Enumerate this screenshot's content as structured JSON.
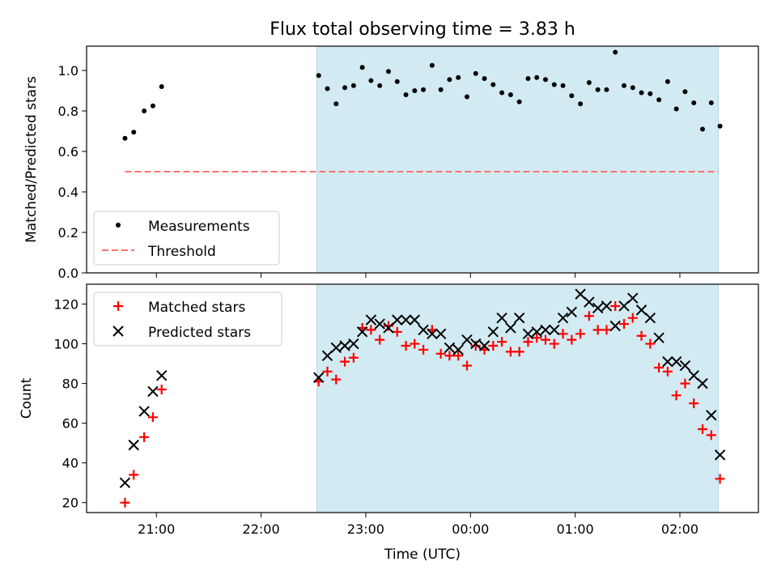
{
  "figure": {
    "title": "Flux total observing time = 3.83 h",
    "xlabel": "Time (UTC)"
  },
  "colors": {
    "shade": "#add8e6",
    "measurement": "#000000",
    "threshold": "#ff7070",
    "matched": "#ff0000",
    "predicted": "#000000"
  },
  "chart_data": [
    {
      "type": "scatter",
      "panel": "top",
      "ylabel": "Matched/Predicted stars",
      "ylim": [
        0,
        1.12
      ],
      "yticks": [
        0.0,
        0.2,
        0.4,
        0.6,
        0.8,
        1.0
      ],
      "ytick_labels": [
        "0.0",
        "0.2",
        "0.4",
        "0.6",
        "0.8",
        "1.0"
      ],
      "xlim": [
        "20:20",
        "02:45"
      ],
      "shaded_interval": [
        "22:32",
        "02:22"
      ],
      "legend_position": "lower-left",
      "series": [
        {
          "name": "Measurements",
          "marker": "dot",
          "x": [
            "20:42",
            "20:47",
            "20:53",
            "20:58",
            "21:03",
            "22:33",
            "22:38",
            "22:43",
            "22:48",
            "22:53",
            "22:58",
            "23:03",
            "23:08",
            "23:13",
            "23:18",
            "23:23",
            "23:28",
            "23:33",
            "23:38",
            "23:43",
            "23:48",
            "23:53",
            "23:58",
            "00:03",
            "00:08",
            "00:13",
            "00:18",
            "00:23",
            "00:28",
            "00:33",
            "00:38",
            "00:43",
            "00:48",
            "00:53",
            "00:58",
            "01:03",
            "01:08",
            "01:13",
            "01:18",
            "01:23",
            "01:28",
            "01:33",
            "01:38",
            "01:43",
            "01:48",
            "01:53",
            "01:58",
            "02:03",
            "02:08",
            "02:13",
            "02:18",
            "02:23"
          ],
          "y": [
            0.665,
            0.695,
            0.8,
            0.825,
            0.92,
            0.975,
            0.91,
            0.835,
            0.915,
            0.925,
            1.015,
            0.95,
            0.925,
            0.995,
            0.945,
            0.88,
            0.9,
            0.905,
            1.025,
            0.905,
            0.955,
            0.965,
            0.87,
            0.985,
            0.96,
            0.93,
            0.89,
            0.88,
            0.845,
            0.96,
            0.965,
            0.955,
            0.93,
            0.925,
            0.875,
            0.835,
            0.94,
            0.905,
            0.905,
            1.09,
            0.925,
            0.915,
            0.89,
            0.885,
            0.855,
            0.945,
            0.81,
            0.895,
            0.84,
            0.71,
            0.84,
            0.725
          ]
        },
        {
          "name": "Threshold",
          "style": "dashed-line",
          "x": [
            "20:42",
            "02:22"
          ],
          "y": [
            0.5,
            0.5
          ]
        }
      ]
    },
    {
      "type": "scatter",
      "panel": "bottom",
      "ylabel": "Count",
      "ylim": [
        15,
        130
      ],
      "yticks": [
        20,
        40,
        60,
        80,
        100,
        120
      ],
      "ytick_labels": [
        "20",
        "40",
        "60",
        "80",
        "100",
        "120"
      ],
      "xlim": [
        "20:20",
        "02:45"
      ],
      "xticks": [
        "21:00",
        "22:00",
        "23:00",
        "00:00",
        "01:00",
        "02:00"
      ],
      "xtick_labels": [
        "21:00",
        "22:00",
        "23:00",
        "00:00",
        "01:00",
        "02:00"
      ],
      "shaded_interval": [
        "22:32",
        "02:22"
      ],
      "legend_position": "upper-left",
      "series": [
        {
          "name": "Matched stars",
          "marker": "plus",
          "x": [
            "20:42",
            "20:47",
            "20:53",
            "20:58",
            "21:03",
            "22:33",
            "22:38",
            "22:43",
            "22:48",
            "22:53",
            "22:58",
            "23:03",
            "23:08",
            "23:13",
            "23:18",
            "23:23",
            "23:28",
            "23:33",
            "23:38",
            "23:43",
            "23:48",
            "23:53",
            "23:58",
            "00:03",
            "00:08",
            "00:13",
            "00:18",
            "00:23",
            "00:28",
            "00:33",
            "00:38",
            "00:43",
            "00:48",
            "00:53",
            "00:58",
            "01:03",
            "01:08",
            "01:13",
            "01:18",
            "01:23",
            "01:28",
            "01:33",
            "01:38",
            "01:43",
            "01:48",
            "01:53",
            "01:58",
            "02:03",
            "02:08",
            "02:13",
            "02:18",
            "02:23"
          ],
          "y": [
            20,
            34,
            53,
            63,
            77,
            81,
            86,
            82,
            91,
            93,
            108,
            107,
            102,
            109,
            106,
            99,
            100,
            97,
            107,
            95,
            94,
            94,
            89,
            99,
            97,
            99,
            101,
            96,
            96,
            101,
            103,
            102,
            100,
            105,
            102,
            105,
            114,
            107,
            107,
            119,
            110,
            113,
            104,
            100,
            88,
            86,
            74,
            80,
            70,
            57,
            54,
            32
          ]
        },
        {
          "name": "Predicted stars",
          "marker": "x",
          "x": [
            "20:42",
            "20:47",
            "20:53",
            "20:58",
            "21:03",
            "22:33",
            "22:38",
            "22:43",
            "22:48",
            "22:53",
            "22:58",
            "23:03",
            "23:08",
            "23:13",
            "23:18",
            "23:23",
            "23:28",
            "23:33",
            "23:38",
            "23:43",
            "23:48",
            "23:53",
            "23:58",
            "00:03",
            "00:08",
            "00:13",
            "00:18",
            "00:23",
            "00:28",
            "00:33",
            "00:38",
            "00:43",
            "00:48",
            "00:53",
            "00:58",
            "01:03",
            "01:08",
            "01:13",
            "01:18",
            "01:23",
            "01:28",
            "01:33",
            "01:38",
            "01:43",
            "01:48",
            "01:53",
            "01:58",
            "02:03",
            "02:08",
            "02:13",
            "02:18",
            "02:23"
          ],
          "y": [
            30,
            49,
            66,
            76,
            84,
            83,
            94,
            98,
            99,
            100,
            106,
            112,
            110,
            108,
            112,
            112,
            112,
            107,
            105,
            105,
            98,
            97,
            102,
            100,
            99,
            106,
            113,
            108,
            113,
            105,
            106,
            107,
            107,
            113,
            116,
            125,
            121,
            118,
            119,
            109,
            119,
            123,
            117,
            113,
            103,
            91,
            91,
            89,
            84,
            80,
            64,
            44
          ]
        }
      ]
    }
  ]
}
